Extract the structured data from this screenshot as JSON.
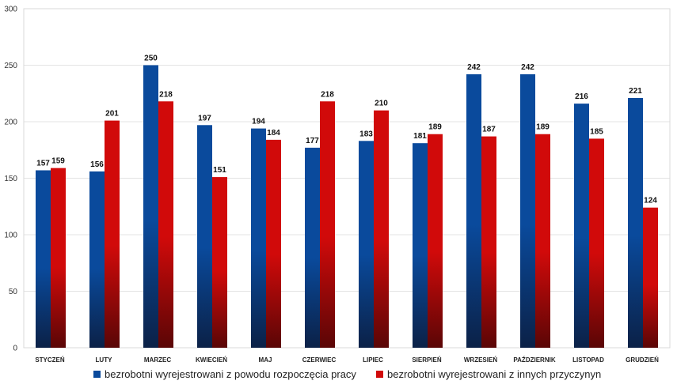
{
  "chart_data": {
    "type": "bar",
    "categories": [
      "STYCZEŃ",
      "LUTY",
      "MARZEC",
      "KWIECIEŃ",
      "MAJ",
      "CZERWIEC",
      "LIPIEC",
      "SIERPIEŃ",
      "WRZESIEŃ",
      "PAŹDZIERNIK",
      "LISTOPAD",
      "GRUDZIEŃ"
    ],
    "series": [
      {
        "name": "bezrobotni wyrejestrowani z powodu rozpoczęcia pracy",
        "color": "#0a4a9c",
        "color_dark": "#0b2147",
        "values": [
          157,
          156,
          250,
          197,
          194,
          177,
          183,
          181,
          242,
          242,
          216,
          221
        ]
      },
      {
        "name": "bezrobotni wyrejestrowani z innych przyczynyn",
        "color": "#d10a0a",
        "color_dark": "#5a0606",
        "values": [
          159,
          201,
          218,
          151,
          184,
          218,
          210,
          189,
          187,
          189,
          185,
          124
        ]
      }
    ],
    "title": "",
    "xlabel": "",
    "ylabel": "",
    "ylim": [
      0,
      300
    ],
    "yticks": [
      0,
      50,
      100,
      150,
      200,
      250,
      300
    ],
    "grid": true,
    "legend": "bottom",
    "data_labels": true
  }
}
